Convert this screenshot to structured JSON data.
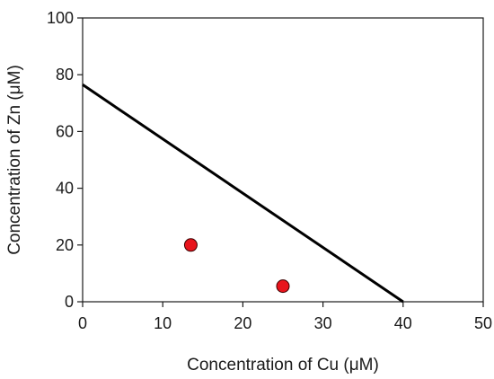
{
  "chart_data": {
    "type": "scatter",
    "title": "",
    "xlabel": "Concentration of Cu (μM)",
    "ylabel": "Concentration of Zn (μM)",
    "xlim": [
      0,
      50
    ],
    "ylim": [
      0,
      100
    ],
    "xticks": [
      "0",
      "10",
      "20",
      "30",
      "40",
      "50"
    ],
    "yticks": [
      "0",
      "20",
      "40",
      "60",
      "80",
      "100"
    ],
    "grid": false,
    "legend": "none",
    "series": [
      {
        "kind": "scatter",
        "color": "#e8141c",
        "points": [
          {
            "x": 13.5,
            "y": 20
          },
          {
            "x": 25,
            "y": 5.5
          }
        ]
      },
      {
        "kind": "line",
        "color": "#000000",
        "points": [
          {
            "x": 0,
            "y": 76.5
          },
          {
            "x": 40,
            "y": 0
          }
        ]
      }
    ]
  }
}
